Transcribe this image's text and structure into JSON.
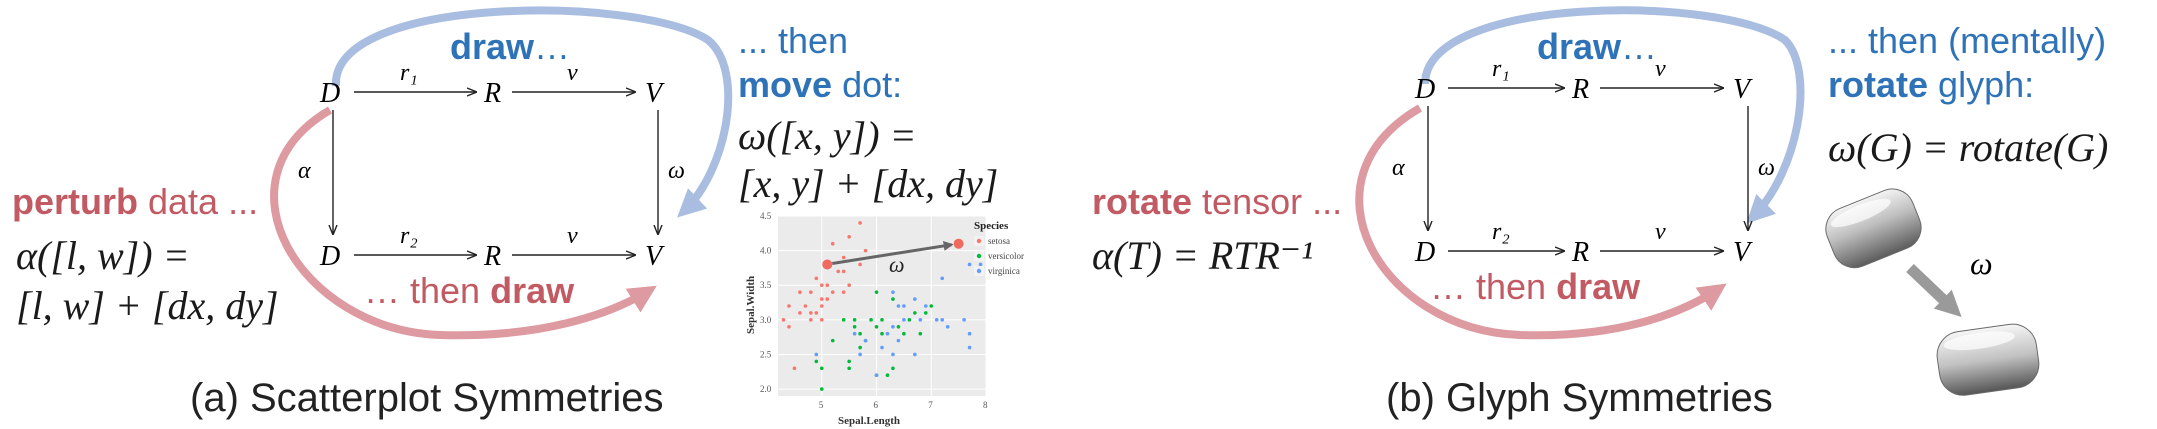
{
  "panel_a": {
    "caption": "(a) Scatterplot Symmetries",
    "perturb_bold": "perturb",
    "perturb_rest": "data ...",
    "alpha_eq_line1": "α([l, w]) =",
    "alpha_eq_line2": "[l, w] + [dx, dy]",
    "draw_top_bold": "draw",
    "draw_top_rest": "…",
    "then_draw_prefix": "… then",
    "then_draw_bold": "draw",
    "then_line": "... then",
    "move_bold": "move",
    "move_rest": "dot:",
    "omega_eq_line1": "ω([x, y]) =",
    "omega_eq_line2": "[x, y] + [dx, dy]",
    "nodes": {
      "D1": "D",
      "R1": "R",
      "V1": "V",
      "D2": "D",
      "R2": "R",
      "V2": "V"
    },
    "edges": {
      "r1": "r₁",
      "v1": "v",
      "r2": "r₂",
      "v2": "v",
      "alpha": "α",
      "omega": "ω"
    },
    "scatter": {
      "omega_label": "ω",
      "legend_title": "Species",
      "legend_items": [
        {
          "label": "setosa",
          "color": "#f8766d"
        },
        {
          "label": "versicolor",
          "color": "#00ba38"
        },
        {
          "label": "virginica",
          "color": "#619cff"
        }
      ]
    }
  },
  "panel_b": {
    "caption": "(b) Glyph Symmetries",
    "rotate_bold": "rotate",
    "rotate_rest": "tensor ...",
    "alpha_eq": "α(T) = RTR⁻¹",
    "draw_top_bold": "draw",
    "draw_top_rest": "…",
    "then_draw_prefix": "… then",
    "then_draw_bold": "draw",
    "then_line": "... then (mentally)",
    "rotate2_bold": "rotate",
    "rotate2_rest": "glyph:",
    "omega_eq": "ω(G) = rotate(G)",
    "omega_arrow_label": "ω",
    "nodes": {
      "D1": "D",
      "R1": "R",
      "V1": "V",
      "D2": "D",
      "R2": "R",
      "V2": "V"
    },
    "edges": {
      "r1": "r₁",
      "v1": "v",
      "r2": "r₂",
      "v2": "v",
      "alpha": "α",
      "omega": "ω"
    }
  },
  "chart_data": {
    "type": "scatter",
    "title": "",
    "xlabel": "Sepal.Length",
    "ylabel": "Sepal.Width",
    "xlim": [
      4.2,
      8.0
    ],
    "ylim": [
      1.9,
      4.5
    ],
    "x_ticks": [
      5,
      6,
      7,
      8
    ],
    "y_ticks": [
      2.0,
      2.5,
      3.0,
      3.5,
      4.0,
      4.5
    ],
    "grid": true,
    "legend": "right",
    "series": [
      {
        "name": "setosa",
        "color": "#f8766d",
        "points": [
          [
            4.3,
            3.0
          ],
          [
            4.4,
            2.9
          ],
          [
            4.4,
            3.2
          ],
          [
            4.6,
            3.1
          ],
          [
            4.6,
            3.4
          ],
          [
            4.7,
            3.2
          ],
          [
            4.8,
            3.0
          ],
          [
            4.8,
            3.4
          ],
          [
            4.9,
            3.1
          ],
          [
            4.9,
            3.6
          ],
          [
            5.0,
            3.0
          ],
          [
            5.0,
            3.3
          ],
          [
            5.0,
            3.5
          ],
          [
            5.1,
            3.5
          ],
          [
            5.1,
            3.8
          ],
          [
            5.1,
            3.3
          ],
          [
            5.2,
            3.4
          ],
          [
            5.2,
            4.1
          ],
          [
            5.3,
            3.7
          ],
          [
            5.4,
            3.9
          ],
          [
            5.4,
            3.4
          ],
          [
            5.5,
            4.2
          ],
          [
            5.5,
            3.5
          ],
          [
            5.7,
            3.8
          ],
          [
            5.7,
            4.4
          ],
          [
            5.8,
            4.0
          ],
          [
            4.5,
            2.3
          ],
          [
            5.0,
            3.2
          ],
          [
            5.4,
            3.7
          ],
          [
            4.8,
            3.1
          ]
        ]
      },
      {
        "name": "versicolor",
        "color": "#00ba38",
        "points": [
          [
            4.9,
            2.4
          ],
          [
            5.0,
            2.0
          ],
          [
            5.0,
            2.3
          ],
          [
            5.2,
            2.7
          ],
          [
            5.5,
            2.3
          ],
          [
            5.5,
            2.4
          ],
          [
            5.6,
            2.9
          ],
          [
            5.6,
            3.0
          ],
          [
            5.7,
            2.8
          ],
          [
            5.8,
            2.7
          ],
          [
            5.9,
            3.0
          ],
          [
            6.0,
            2.2
          ],
          [
            6.0,
            2.9
          ],
          [
            6.0,
            3.4
          ],
          [
            6.1,
            2.8
          ],
          [
            6.2,
            2.2
          ],
          [
            6.3,
            2.3
          ],
          [
            6.3,
            3.3
          ],
          [
            6.4,
            2.9
          ],
          [
            6.5,
            2.8
          ],
          [
            6.6,
            3.0
          ],
          [
            6.7,
            3.1
          ],
          [
            6.8,
            2.8
          ],
          [
            6.9,
            3.1
          ],
          [
            7.0,
            3.2
          ],
          [
            5.7,
            2.6
          ],
          [
            6.1,
            3.0
          ],
          [
            5.4,
            3.0
          ]
        ]
      },
      {
        "name": "virginica",
        "color": "#619cff",
        "points": [
          [
            4.9,
            2.5
          ],
          [
            5.6,
            2.8
          ],
          [
            5.7,
            2.5
          ],
          [
            5.8,
            2.7
          ],
          [
            6.0,
            2.2
          ],
          [
            6.1,
            2.6
          ],
          [
            6.2,
            2.8
          ],
          [
            6.3,
            2.5
          ],
          [
            6.3,
            2.9
          ],
          [
            6.4,
            2.7
          ],
          [
            6.4,
            3.2
          ],
          [
            6.5,
            3.0
          ],
          [
            6.7,
            2.5
          ],
          [
            6.7,
            3.3
          ],
          [
            6.8,
            3.0
          ],
          [
            6.9,
            3.2
          ],
          [
            7.1,
            3.0
          ],
          [
            7.2,
            3.6
          ],
          [
            7.2,
            3.0
          ],
          [
            7.3,
            2.9
          ],
          [
            7.6,
            3.0
          ],
          [
            7.7,
            2.6
          ],
          [
            7.7,
            3.8
          ],
          [
            7.7,
            2.8
          ],
          [
            7.9,
            3.8
          ],
          [
            6.5,
            3.2
          ],
          [
            6.3,
            3.4
          ]
        ]
      }
    ],
    "highlight": {
      "from": [
        5.1,
        3.8
      ],
      "to": [
        7.5,
        4.1
      ],
      "label": "ω",
      "color": "#f06a5e"
    }
  }
}
